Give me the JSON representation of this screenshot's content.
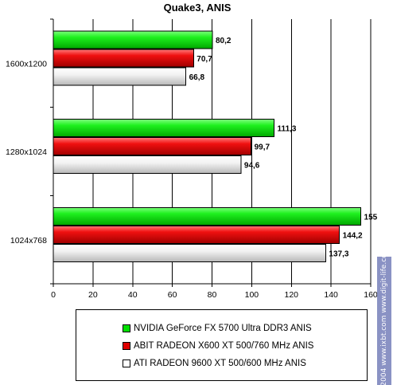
{
  "chart_data": {
    "type": "bar",
    "orientation": "horizontal",
    "title": "Quake3, ANIS",
    "categories": [
      "1600x1200",
      "1280x1024",
      "1024x768"
    ],
    "series": [
      {
        "name": "NVIDIA GeForce FX 5700 Ultra DDR3 ANIS",
        "color": "#00e000",
        "values": [
          80.2,
          111.3,
          155
        ],
        "labels": [
          "80,2",
          "111,3",
          "155"
        ]
      },
      {
        "name": "ABIT RADEON X600 XT 500/760 MHz ANIS",
        "color": "#e00000",
        "values": [
          70.7,
          99.7,
          144.2
        ],
        "labels": [
          "70,7",
          "99,7",
          "144,2"
        ]
      },
      {
        "name": "ATI RADEON 9600 XT 500/600 MHz ANIS",
        "color": "#f4f4f4",
        "values": [
          66.8,
          94.6,
          137.3
        ],
        "labels": [
          "66,8",
          "94,6",
          "137,3"
        ]
      }
    ],
    "xlim": [
      0,
      160
    ],
    "xticks": [
      0,
      20,
      40,
      60,
      80,
      100,
      120,
      140,
      160
    ],
    "grid": true,
    "legend_position": "bottom"
  },
  "watermark": "© 2004 www.ixbt.com  www.digit-life.com"
}
